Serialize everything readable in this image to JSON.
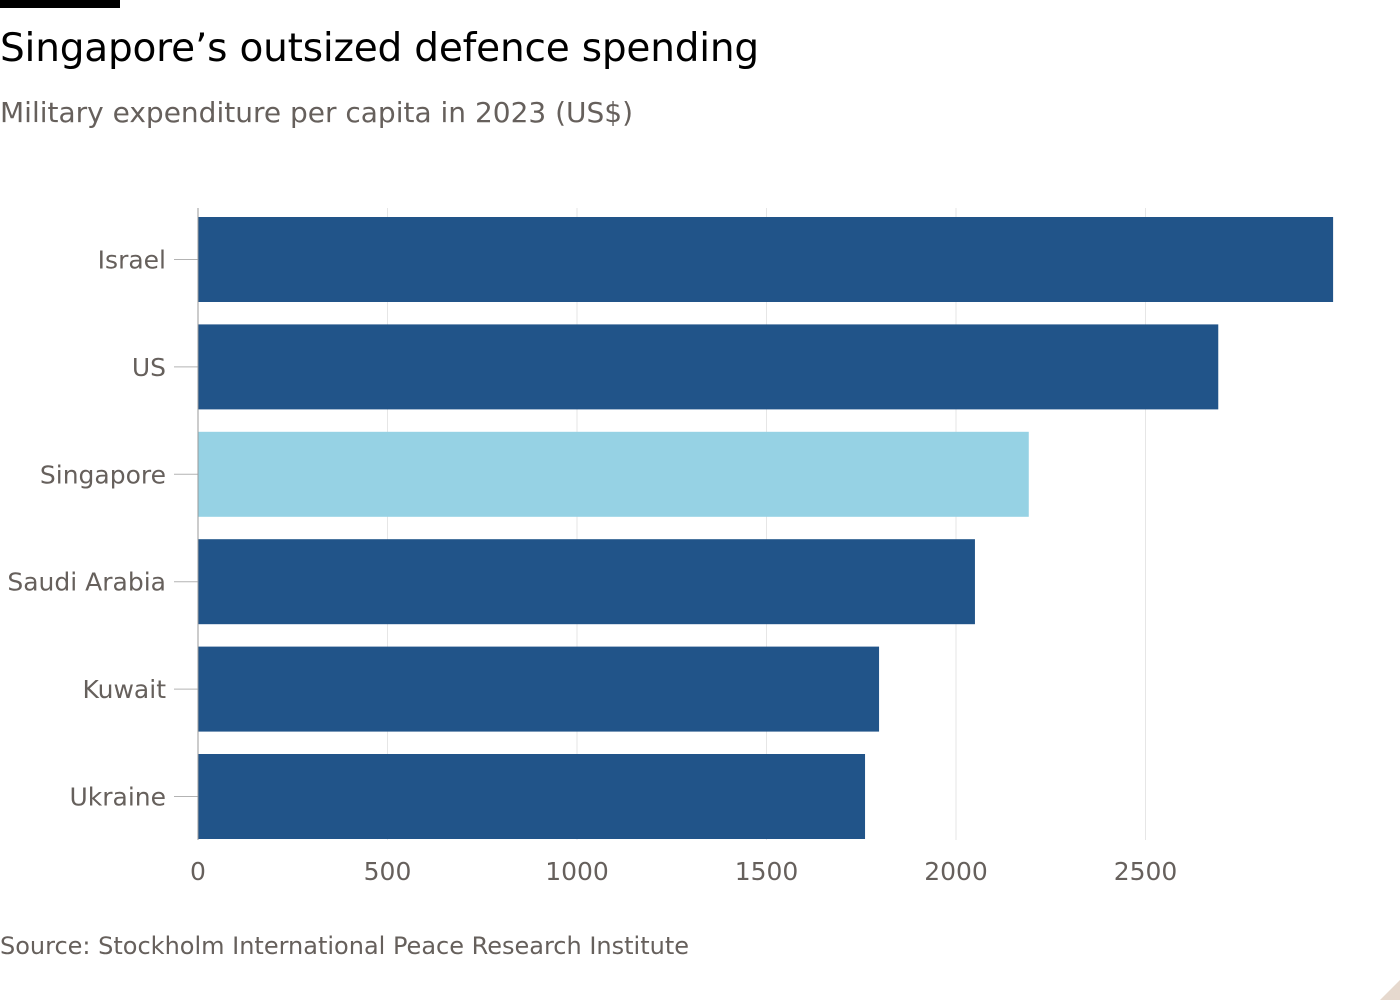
{
  "title": "Singapore’s outsized defence spending",
  "subtitle": "Military expenditure per capita in 2023 (US$)",
  "source": "Source: Stockholm International Peace Research Institute",
  "colors": {
    "bar": "#215489",
    "highlight": "#96d2e4",
    "grid": "#e6e6e6",
    "tick": "#b3b3b3",
    "label": "#66605c"
  },
  "chart_data": {
    "type": "bar",
    "orientation": "horizontal",
    "title": "Singapore’s outsized defence spending",
    "subtitle": "Military expenditure per capita in 2023 (US$)",
    "categories": [
      "Israel",
      "US",
      "Singapore",
      "Saudi Arabia",
      "Kuwait",
      "Ukraine"
    ],
    "values": [
      2995,
      2692,
      2192,
      2050,
      1797,
      1760
    ],
    "highlight": "Singapore",
    "xlim": [
      0,
      3000
    ],
    "xticks": [
      0,
      500,
      1000,
      1500,
      2000,
      2500
    ],
    "grid": true,
    "legend": "none"
  }
}
